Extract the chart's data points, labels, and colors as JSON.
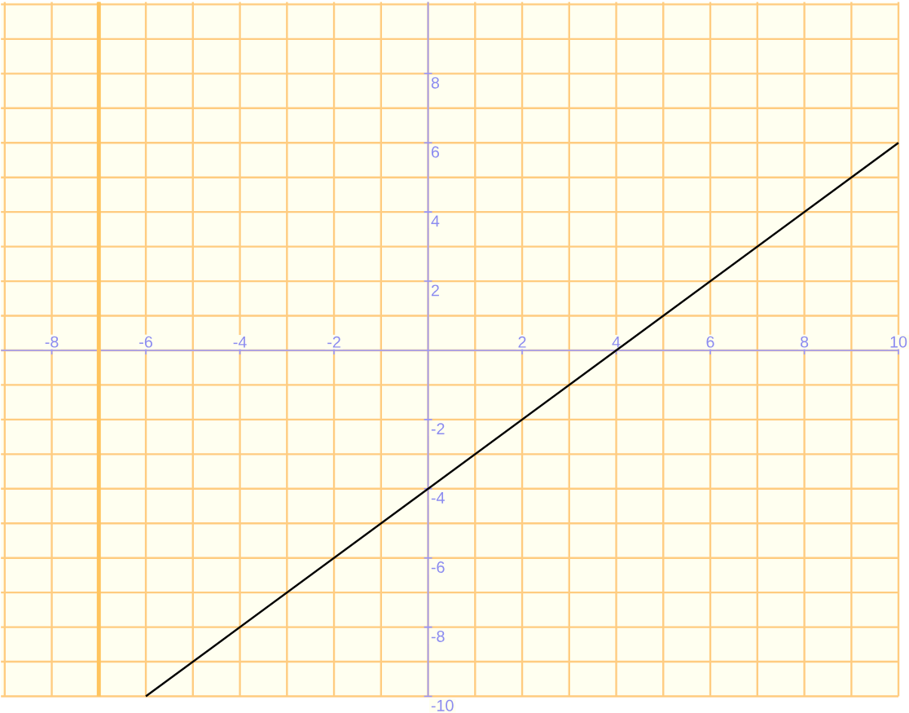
{
  "chart_data": {
    "type": "line",
    "xlim": [
      -9.08,
      10.0
    ],
    "ylim": [
      -10.0,
      10.07
    ],
    "xticks": [
      {
        "value": -9,
        "label": null
      },
      -8,
      {
        "value": -7,
        "label": null
      },
      -6,
      {
        "value": -5,
        "label": null
      },
      -4,
      {
        "value": -3,
        "label": null
      },
      -2,
      {
        "value": -1,
        "label": null
      },
      {
        "value": 0,
        "label": null
      },
      {
        "value": 1,
        "label": null
      },
      2,
      {
        "value": 3,
        "label": null
      },
      4,
      {
        "value": 5,
        "label": null
      },
      6,
      {
        "value": 7,
        "label": null
      },
      8,
      {
        "value": 9,
        "label": null
      },
      10
    ],
    "yticks": [
      -10,
      {
        "value": -9,
        "label": null
      },
      -8,
      {
        "value": -7,
        "label": null
      },
      -6,
      {
        "value": -5,
        "label": null
      },
      -4,
      {
        "value": -3,
        "label": null
      },
      -2,
      {
        "value": -1,
        "label": null
      },
      {
        "value": 0,
        "label": null
      },
      {
        "value": 1,
        "label": null
      },
      2,
      {
        "value": 3,
        "label": null
      },
      4,
      {
        "value": 5,
        "label": null
      },
      6,
      {
        "value": 7,
        "label": null
      },
      8,
      {
        "value": 9,
        "label": null
      },
      {
        "value": 10,
        "label": null
      }
    ],
    "grid": true,
    "marker": "none",
    "line_style": "solid",
    "ref_lines": [
      {
        "axis": "x",
        "value": -7,
        "color": "#ffc45e"
      }
    ],
    "series": [
      {
        "color": "#000000",
        "x": [
          -6,
          10
        ],
        "values": [
          -10,
          6
        ]
      }
    ]
  }
}
